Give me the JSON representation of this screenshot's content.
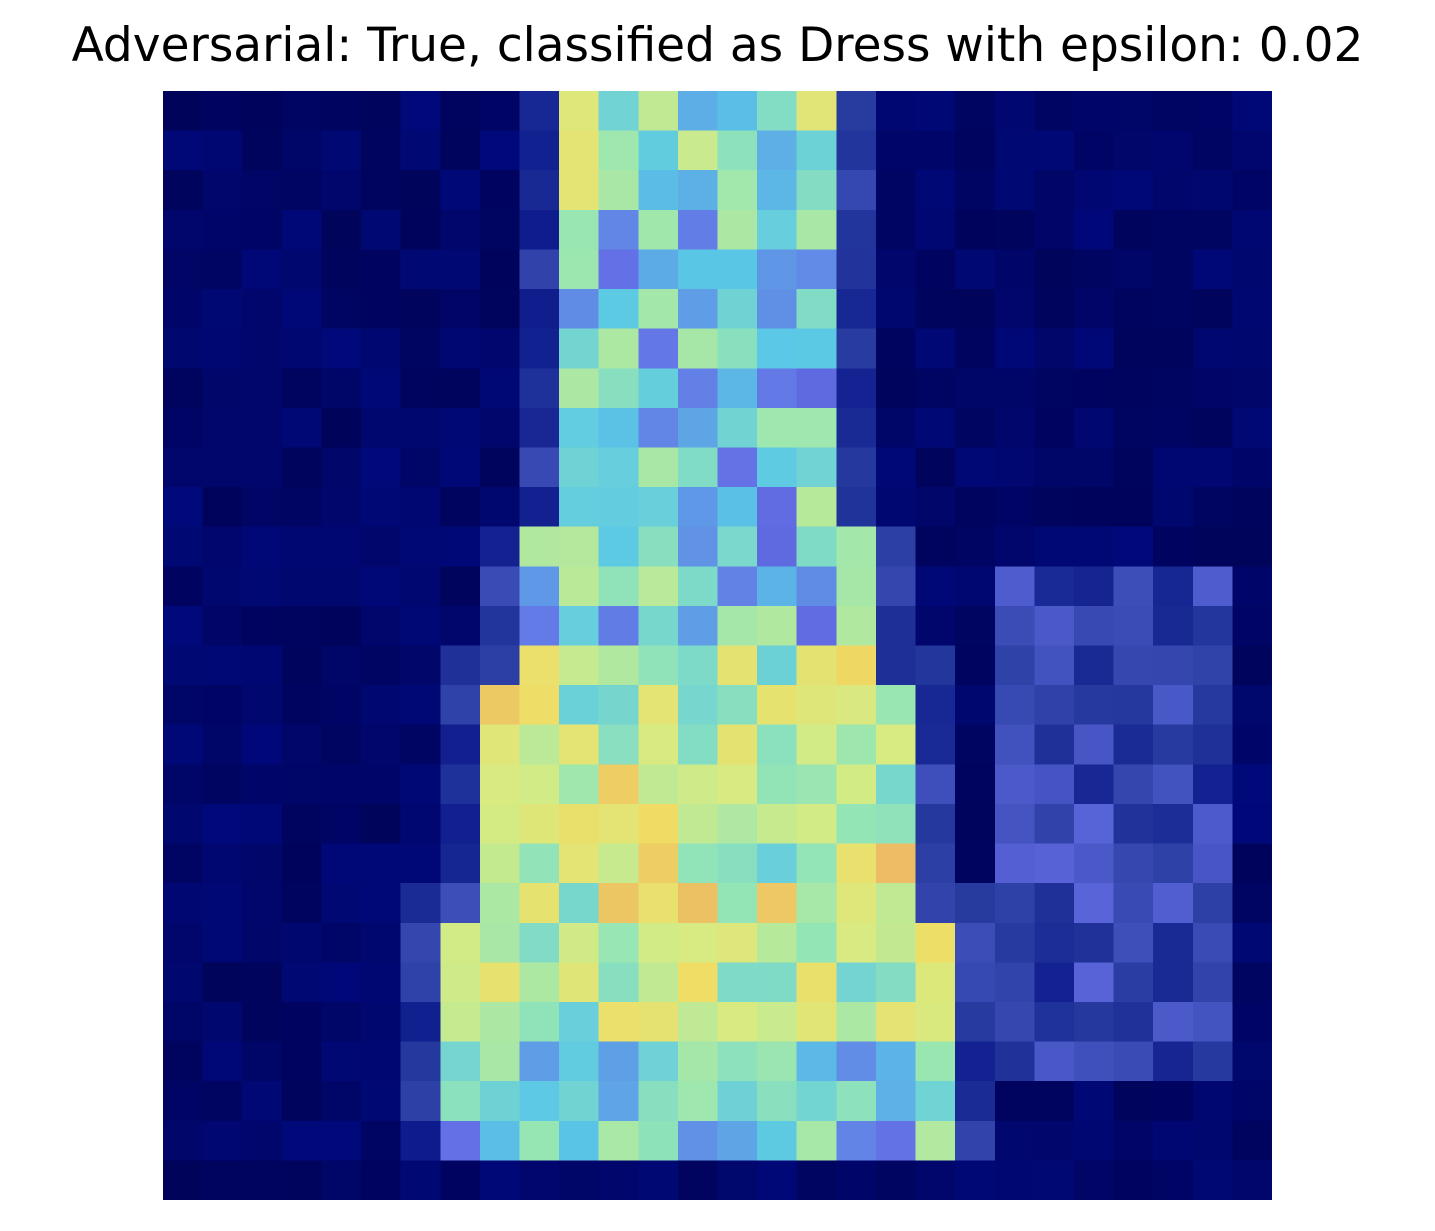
{
  "figure": {
    "title": "Adversarial: True, classified as Dress with epsilon: 0.02"
  },
  "image": {
    "description_icon": "heatmap-overlay-image",
    "grid_size": 28,
    "colormap_accent": {
      "dark": "#000050",
      "mid": "#5a6ee0",
      "bright": "#f5f57a",
      "hot": "#e06464"
    }
  }
}
